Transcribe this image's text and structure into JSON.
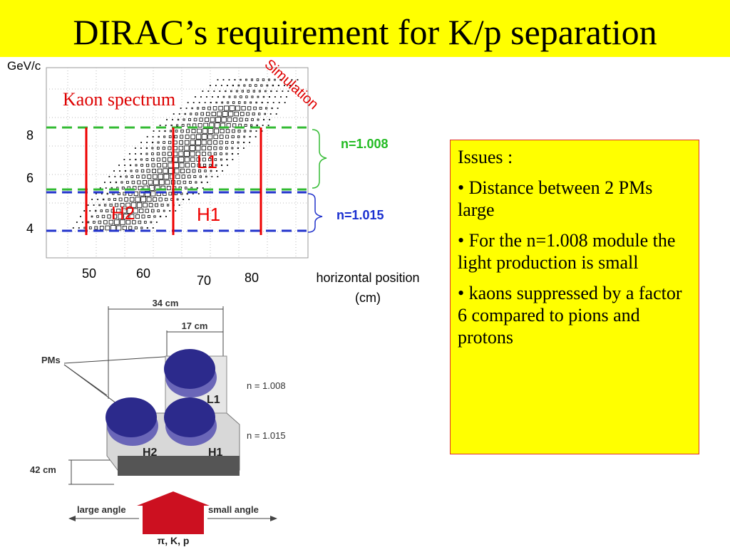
{
  "header": {
    "title": "DIRAC’s requirement for K/p separation"
  },
  "plot": {
    "y_unit": "GeV/c",
    "note": "Simulation",
    "label": "Kaon spectrum",
    "y_labels": [
      "8",
      "6",
      "4"
    ],
    "x_labels": [
      "50",
      "60",
      "70",
      "80"
    ],
    "x_axis_label": [
      "horizontal position",
      "(cm)"
    ],
    "regions": [
      "L1",
      "H2",
      "H1"
    ],
    "brackets": [
      "n=1.008",
      "n=1.015"
    ]
  },
  "issues": {
    "heading": "Issues :",
    "bullets": [
      "• Distance between 2 PMs large",
      "• For the n=1.008 module the light production is small",
      "• kaons suppressed by a factor 6 compared to pions and protons"
    ]
  },
  "diagram": {
    "width_total": "34 cm",
    "width_half": "17 cm",
    "pms": "PMs",
    "n_top": "n = 1.008",
    "n_bottom": "n = 1.015",
    "modules": [
      "L1",
      "H2",
      "H1"
    ],
    "depth": "42 cm",
    "large_angle": "large angle",
    "small_angle": "small angle",
    "beam": "π, K, p"
  }
}
